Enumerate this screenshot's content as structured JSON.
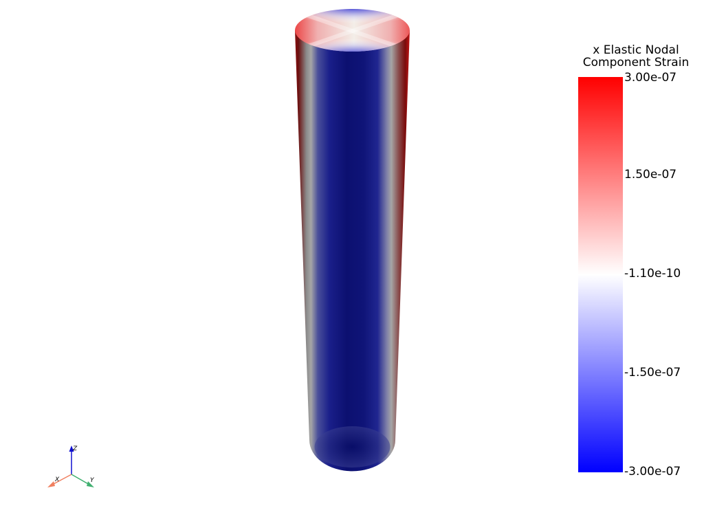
{
  "colorbar": {
    "title_line1": "x Elastic Nodal",
    "title_line2": "Component Strain",
    "ticks": [
      "3.00e-07",
      "1.50e-07",
      "-1.10e-10",
      "-1.50e-07",
      "-3.00e-07"
    ],
    "colors": [
      "#ff0000",
      "#ffffff",
      "#0000ff"
    ]
  },
  "axes": {
    "x": "X",
    "y": "Y",
    "z": "Z",
    "x_color": "#f08060",
    "y_color": "#40b070",
    "z_color": "#1010d0"
  },
  "model": {
    "shape": "cylinder",
    "side_colors": [
      "#7a0a0a",
      "#9c9c9c",
      "#0e1475",
      "#9c9c9c",
      "#7a0a0a"
    ]
  }
}
